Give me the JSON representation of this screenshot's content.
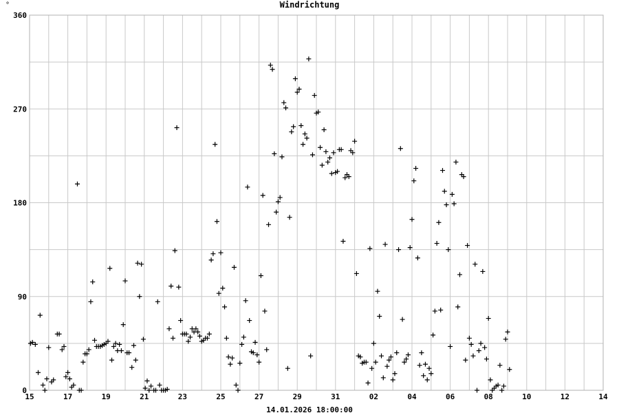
{
  "chart_data": {
    "type": "scatter",
    "title": "Windrichtung",
    "unit": "°",
    "footer": "14.01.2026 18:00:00",
    "ylim": [
      0,
      360
    ],
    "y_ticks": [
      0,
      90,
      180,
      270,
      360
    ],
    "xlim": [
      0,
      30
    ],
    "x_ticks": [
      {
        "label": "15",
        "x": 0
      },
      {
        "label": "17",
        "x": 2
      },
      {
        "label": "19",
        "x": 4
      },
      {
        "label": "21",
        "x": 6
      },
      {
        "label": "23",
        "x": 8
      },
      {
        "label": "25",
        "x": 10
      },
      {
        "label": "27",
        "x": 12
      },
      {
        "label": "29",
        "x": 14
      },
      {
        "label": "31",
        "x": 16
      },
      {
        "label": "02",
        "x": 18
      },
      {
        "label": "04",
        "x": 20
      },
      {
        "label": "06",
        "x": 22
      },
      {
        "label": "08",
        "x": 24
      },
      {
        "label": "10",
        "x": 26
      },
      {
        "label": "12",
        "x": 28
      },
      {
        "label": "14",
        "x": 30
      }
    ],
    "marker": "plus",
    "color": "#000000",
    "grid": true,
    "points": [
      [
        0.05,
        45
      ],
      [
        0.15,
        46
      ],
      [
        0.3,
        44
      ],
      [
        0.45,
        17
      ],
      [
        0.55,
        72
      ],
      [
        0.7,
        5
      ],
      [
        0.8,
        0
      ],
      [
        0.9,
        11
      ],
      [
        1.0,
        41
      ],
      [
        1.15,
        8
      ],
      [
        1.25,
        10
      ],
      [
        1.45,
        54
      ],
      [
        1.55,
        54
      ],
      [
        1.7,
        39
      ],
      [
        1.8,
        42
      ],
      [
        1.9,
        13
      ],
      [
        2.0,
        17
      ],
      [
        2.1,
        11
      ],
      [
        2.2,
        3
      ],
      [
        2.3,
        5
      ],
      [
        2.5,
        198
      ],
      [
        2.6,
        0
      ],
      [
        2.7,
        0
      ],
      [
        2.8,
        27
      ],
      [
        2.9,
        35
      ],
      [
        3.0,
        35
      ],
      [
        3.1,
        39
      ],
      [
        3.2,
        85
      ],
      [
        3.3,
        104
      ],
      [
        3.4,
        48
      ],
      [
        3.5,
        42
      ],
      [
        3.6,
        42
      ],
      [
        3.7,
        42
      ],
      [
        3.8,
        43
      ],
      [
        3.9,
        44
      ],
      [
        4.0,
        45
      ],
      [
        4.1,
        47
      ],
      [
        4.2,
        117
      ],
      [
        4.3,
        29
      ],
      [
        4.4,
        42
      ],
      [
        4.5,
        45
      ],
      [
        4.6,
        38
      ],
      [
        4.7,
        44
      ],
      [
        4.8,
        38
      ],
      [
        4.9,
        63
      ],
      [
        5.0,
        105
      ],
      [
        5.1,
        36
      ],
      [
        5.2,
        36
      ],
      [
        5.35,
        22
      ],
      [
        5.45,
        43
      ],
      [
        5.55,
        29
      ],
      [
        5.65,
        122
      ],
      [
        5.75,
        90
      ],
      [
        5.85,
        121
      ],
      [
        5.95,
        49
      ],
      [
        6.05,
        2
      ],
      [
        6.15,
        9
      ],
      [
        6.25,
        0
      ],
      [
        6.35,
        4
      ],
      [
        6.5,
        0
      ],
      [
        6.6,
        0
      ],
      [
        6.7,
        85
      ],
      [
        6.8,
        5
      ],
      [
        6.9,
        0
      ],
      [
        7.0,
        0
      ],
      [
        7.1,
        0
      ],
      [
        7.2,
        1
      ],
      [
        7.3,
        59
      ],
      [
        7.4,
        100
      ],
      [
        7.5,
        50
      ],
      [
        7.6,
        134
      ],
      [
        7.7,
        252
      ],
      [
        7.8,
        99
      ],
      [
        7.9,
        67
      ],
      [
        8.0,
        54
      ],
      [
        8.1,
        54
      ],
      [
        8.2,
        54
      ],
      [
        8.3,
        47
      ],
      [
        8.4,
        51
      ],
      [
        8.5,
        59
      ],
      [
        8.6,
        56
      ],
      [
        8.7,
        59
      ],
      [
        8.8,
        56
      ],
      [
        8.9,
        52
      ],
      [
        9.0,
        47
      ],
      [
        9.1,
        48
      ],
      [
        9.2,
        50
      ],
      [
        9.3,
        50
      ],
      [
        9.4,
        54
      ],
      [
        9.5,
        125
      ],
      [
        9.6,
        131
      ],
      [
        9.7,
        236
      ],
      [
        9.8,
        162
      ],
      [
        9.9,
        93
      ],
      [
        10.0,
        132
      ],
      [
        10.1,
        98
      ],
      [
        10.2,
        80
      ],
      [
        10.3,
        50
      ],
      [
        10.4,
        32
      ],
      [
        10.5,
        25
      ],
      [
        10.6,
        31
      ],
      [
        10.7,
        118
      ],
      [
        10.8,
        5
      ],
      [
        10.9,
        0
      ],
      [
        11.0,
        26
      ],
      [
        11.1,
        44
      ],
      [
        11.2,
        51
      ],
      [
        11.3,
        86
      ],
      [
        11.4,
        195
      ],
      [
        11.5,
        67
      ],
      [
        11.6,
        37
      ],
      [
        11.7,
        36
      ],
      [
        11.8,
        46
      ],
      [
        11.9,
        34
      ],
      [
        12.0,
        27
      ],
      [
        12.1,
        110
      ],
      [
        12.2,
        187
      ],
      [
        12.3,
        76
      ],
      [
        12.4,
        39
      ],
      [
        12.5,
        159
      ],
      [
        12.6,
        312
      ],
      [
        12.7,
        308
      ],
      [
        12.8,
        227
      ],
      [
        12.9,
        171
      ],
      [
        13.0,
        181
      ],
      [
        13.1,
        185
      ],
      [
        13.2,
        224
      ],
      [
        13.3,
        276
      ],
      [
        13.4,
        271
      ],
      [
        13.5,
        21
      ],
      [
        13.6,
        166
      ],
      [
        13.7,
        248
      ],
      [
        13.8,
        253
      ],
      [
        13.9,
        299
      ],
      [
        14.0,
        286
      ],
      [
        14.1,
        289
      ],
      [
        14.2,
        254
      ],
      [
        14.3,
        236
      ],
      [
        14.4,
        246
      ],
      [
        14.5,
        242
      ],
      [
        14.6,
        318
      ],
      [
        14.7,
        33
      ],
      [
        14.8,
        226
      ],
      [
        14.9,
        283
      ],
      [
        15.0,
        266
      ],
      [
        15.1,
        267
      ],
      [
        15.2,
        233
      ],
      [
        15.3,
        216
      ],
      [
        15.4,
        250
      ],
      [
        15.5,
        229
      ],
      [
        15.6,
        219
      ],
      [
        15.7,
        223
      ],
      [
        15.8,
        208
      ],
      [
        15.9,
        228
      ],
      [
        16.0,
        209
      ],
      [
        16.1,
        210
      ],
      [
        16.2,
        231
      ],
      [
        16.3,
        231
      ],
      [
        16.4,
        143
      ],
      [
        16.5,
        204
      ],
      [
        16.6,
        207
      ],
      [
        16.7,
        205
      ],
      [
        16.8,
        230
      ],
      [
        16.9,
        228
      ],
      [
        17.0,
        239
      ],
      [
        17.1,
        112
      ],
      [
        17.2,
        33
      ],
      [
        17.3,
        32
      ],
      [
        17.4,
        26
      ],
      [
        17.5,
        27
      ],
      [
        17.6,
        27
      ],
      [
        17.7,
        7
      ],
      [
        17.8,
        136
      ],
      [
        17.9,
        21
      ],
      [
        18.0,
        45
      ],
      [
        18.1,
        27
      ],
      [
        18.2,
        95
      ],
      [
        18.3,
        71
      ],
      [
        18.4,
        33
      ],
      [
        18.5,
        12
      ],
      [
        18.6,
        140
      ],
      [
        18.7,
        23
      ],
      [
        18.8,
        29
      ],
      [
        18.9,
        32
      ],
      [
        19.0,
        10
      ],
      [
        19.1,
        16
      ],
      [
        19.2,
        36
      ],
      [
        19.3,
        135
      ],
      [
        19.4,
        232
      ],
      [
        19.5,
        68
      ],
      [
        19.6,
        27
      ],
      [
        19.7,
        30
      ],
      [
        19.8,
        34
      ],
      [
        19.9,
        137
      ],
      [
        20.0,
        164
      ],
      [
        20.1,
        201
      ],
      [
        20.2,
        213
      ],
      [
        20.3,
        127
      ],
      [
        20.4,
        24
      ],
      [
        20.5,
        36
      ],
      [
        20.6,
        14
      ],
      [
        20.7,
        25
      ],
      [
        20.8,
        10
      ],
      [
        20.9,
        21
      ],
      [
        21.0,
        16
      ],
      [
        21.1,
        53
      ],
      [
        21.2,
        76
      ],
      [
        21.3,
        141
      ],
      [
        21.4,
        161
      ],
      [
        21.5,
        77
      ],
      [
        21.6,
        211
      ],
      [
        21.7,
        191
      ],
      [
        21.8,
        178
      ],
      [
        21.9,
        135
      ],
      [
        22.0,
        42
      ],
      [
        22.1,
        188
      ],
      [
        22.2,
        179
      ],
      [
        22.3,
        219
      ],
      [
        22.4,
        80
      ],
      [
        22.5,
        111
      ],
      [
        22.6,
        207
      ],
      [
        22.7,
        205
      ],
      [
        22.8,
        29
      ],
      [
        22.9,
        139
      ],
      [
        23.0,
        50
      ],
      [
        23.1,
        44
      ],
      [
        23.2,
        33
      ],
      [
        23.3,
        121
      ],
      [
        23.4,
        0
      ],
      [
        23.5,
        38
      ],
      [
        23.6,
        45
      ],
      [
        23.7,
        114
      ],
      [
        23.8,
        41
      ],
      [
        23.9,
        30
      ],
      [
        24.0,
        69
      ],
      [
        24.1,
        10
      ],
      [
        24.2,
        0
      ],
      [
        24.3,
        2
      ],
      [
        24.4,
        4
      ],
      [
        24.5,
        5
      ],
      [
        24.6,
        24
      ],
      [
        24.7,
        0
      ],
      [
        24.8,
        4
      ],
      [
        24.9,
        49
      ],
      [
        25.0,
        56
      ],
      [
        25.1,
        20
      ]
    ]
  }
}
